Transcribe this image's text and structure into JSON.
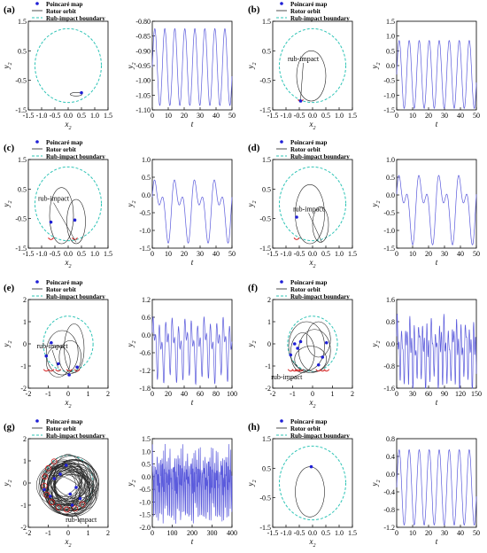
{
  "legend": {
    "poincare": "Poincaré map",
    "orbit": "Rotor orbit",
    "boundary": "Rub-impact boundary"
  },
  "colors": {
    "boundary": "#2ec4b6",
    "poincare": "#1f1fd6",
    "orbit": "#222222",
    "series": "#5b5bdc",
    "impact": "#d62020"
  },
  "annotation": "rub-impact",
  "chart_data": [
    {
      "panel": "(a)",
      "left": {
        "type": "scatter",
        "xlabel": "x2",
        "ylabel": "y2",
        "xlim": [
          -1.5,
          1.5
        ],
        "ylim": [
          -1.5,
          1.5
        ],
        "xticks": [
          "-1.5",
          "-1.0",
          "-0.5",
          "0.0",
          "0.5",
          "1.0",
          "1.5"
        ],
        "yticks": [
          "1.5",
          "0.5",
          "-0.5",
          "-1.5"
        ],
        "poincare": [
          [
            0.5,
            -0.92
          ]
        ],
        "impact": false,
        "rings": [
          [
            0.3,
            -0.97,
            0.22,
            0.06
          ]
        ],
        "legend": true
      },
      "right": {
        "type": "line",
        "xlabel": "t",
        "ylabel": "y2",
        "xlim": [
          0,
          50
        ],
        "ylim": [
          -1.1,
          -0.8
        ],
        "xticks": [
          "0",
          "10",
          "20",
          "30",
          "40",
          "50"
        ],
        "yticks": [
          "-0.80",
          "-0.85",
          "-0.90",
          "-0.95",
          "-1.00",
          "-1.05",
          "-1.10"
        ],
        "mid": -0.955,
        "amp": 0.13,
        "period": 6.28,
        "harm": 0
      }
    },
    {
      "panel": "(b)",
      "left": {
        "type": "scatter",
        "xlabel": "x2",
        "ylabel": "y2",
        "xlim": [
          -1.5,
          1.5
        ],
        "ylim": [
          -1.5,
          1.5
        ],
        "xticks": [
          "-1.5",
          "-1.0",
          "-0.5",
          "0.0",
          "0.5",
          "1.0",
          "1.5"
        ],
        "yticks": [
          "1.5",
          "0.5",
          "-0.5",
          "-1.5"
        ],
        "poincare": [
          [
            -0.45,
            -1.2
          ]
        ],
        "impact": true,
        "rings": [
          [
            -0.05,
            -0.35,
            0.55,
            0.85
          ]
        ],
        "legend": true,
        "ann": [
          -0.35,
          0.15,
          -0.45,
          -1.15
        ]
      },
      "right": {
        "type": "line",
        "xlabel": "t",
        "ylabel": "y2",
        "xlim": [
          0,
          50
        ],
        "ylim": [
          -1.5,
          1.5
        ],
        "xticks": [
          "0",
          "10",
          "20",
          "30",
          "40",
          "50"
        ],
        "yticks": [
          "1.5",
          "1.0",
          "0.5",
          "0.0",
          "-0.5",
          "-1.0",
          "-1.5"
        ],
        "mid": -0.3,
        "amp": 1.15,
        "period": 6.28,
        "harm": 0
      }
    },
    {
      "panel": "(c)",
      "left": {
        "type": "scatter",
        "xlabel": "x2",
        "ylabel": "y2",
        "xlim": [
          -1.5,
          1.5
        ],
        "ylim": [
          -1.5,
          1.5
        ],
        "xticks": [
          "-1.5",
          "-1.0",
          "-0.5",
          "0.0",
          "0.5",
          "1.0",
          "1.5"
        ],
        "yticks": [
          "1.5",
          "0.5",
          "-0.5",
          "-1.5"
        ],
        "poincare": [
          [
            -0.65,
            -0.62
          ],
          [
            0.25,
            -0.55
          ]
        ],
        "impact": true,
        "rings": [
          [
            -0.25,
            -0.4,
            0.45,
            0.95
          ],
          [
            0.3,
            -0.6,
            0.35,
            0.75
          ]
        ],
        "legend": true,
        "ann": [
          -0.55,
          0.1,
          0.3,
          -1.3
        ]
      },
      "right": {
        "type": "line",
        "xlabel": "t",
        "ylabel": "y2",
        "xlim": [
          0,
          50
        ],
        "ylim": [
          -1.5,
          1.0
        ],
        "xticks": [
          "0",
          "10",
          "20",
          "30",
          "40",
          "50"
        ],
        "yticks": [
          "1.0",
          "0.5",
          "0.0",
          "-0.5",
          "-1.0",
          "-1.5"
        ],
        "mid": -0.35,
        "amp": 1.0,
        "period": 12.5,
        "harm": 1
      }
    },
    {
      "panel": "(d)",
      "left": {
        "type": "scatter",
        "xlabel": "x2",
        "ylabel": "y2",
        "xlim": [
          -1.5,
          1.5
        ],
        "ylim": [
          -1.5,
          1.5
        ],
        "xticks": [
          "-1.5",
          "-1.0",
          "-0.5",
          "0.0",
          "0.5",
          "1.0",
          "1.5"
        ],
        "yticks": [
          "1.5",
          "0.5",
          "-0.5",
          "-1.5"
        ],
        "poincare": [
          [
            -0.6,
            -0.45
          ]
        ],
        "impact": true,
        "rings": [
          [
            -0.1,
            -0.35,
            0.55,
            1.0
          ],
          [
            0.3,
            -0.7,
            0.3,
            0.6
          ]
        ],
        "legend": true,
        "ann": [
          -0.15,
          -0.25,
          0.35,
          -1.3
        ]
      },
      "right": {
        "type": "line",
        "xlabel": "t",
        "ylabel": "y2",
        "xlim": [
          0,
          50
        ],
        "ylim": [
          -1.5,
          1.0
        ],
        "xticks": [
          "0",
          "10",
          "20",
          "30",
          "40",
          "50"
        ],
        "yticks": [
          "1.0",
          "0.5",
          "0.0",
          "-0.5",
          "-1.0",
          "-1.5"
        ],
        "mid": -0.3,
        "amp": 1.1,
        "period": 12.5,
        "harm": 1
      }
    },
    {
      "panel": "(e)",
      "left": {
        "type": "scatter",
        "xlabel": "x2",
        "ylabel": "y2",
        "xlim": [
          -2,
          2
        ],
        "ylim": [
          -2,
          2
        ],
        "xticks": [
          "-2",
          "-1",
          "0",
          "1",
          "2"
        ],
        "yticks": [
          "2",
          "1",
          "0",
          "-1",
          "-2"
        ],
        "poincare": [
          [
            -1.1,
            -0.55
          ],
          [
            -0.5,
            -0.9
          ],
          [
            0.05,
            -1.4
          ],
          [
            0.45,
            -1.05
          ],
          [
            -0.85,
            0.05
          ]
        ],
        "impact": true,
        "rings": [
          [
            -0.3,
            -0.4,
            0.8,
            1.0
          ],
          [
            0.1,
            -0.6,
            0.55,
            0.75
          ],
          [
            -0.5,
            -0.8,
            0.6,
            0.7
          ],
          [
            0.3,
            -0.2,
            0.5,
            1.1
          ]
        ],
        "legend": true,
        "ann": [
          -0.8,
          -0.2,
          -0.5,
          -1.1
        ]
      },
      "right": {
        "type": "line",
        "xlabel": "t",
        "ylabel": "y2",
        "xlim": [
          0,
          100
        ],
        "ylim": [
          -1.8,
          1.2
        ],
        "xticks": [
          "0",
          "20",
          "40",
          "60",
          "80",
          "100"
        ],
        "yticks": [
          "1.2",
          "0.6",
          "0.0",
          "-0.6",
          "-1.2",
          "-1.8"
        ],
        "mid": -0.4,
        "amp": 1.1,
        "period": 8,
        "harm": 2
      }
    },
    {
      "panel": "(f)",
      "left": {
        "type": "scatter",
        "xlabel": "x2",
        "ylabel": "y2",
        "xlim": [
          -2,
          2
        ],
        "ylim": [
          -2,
          2
        ],
        "xticks": [
          "-2",
          "-1",
          "0",
          "1",
          "2"
        ],
        "yticks": [
          "2",
          "1",
          "0",
          "-1",
          "-2"
        ],
        "poincare": [
          [
            -0.9,
            0.0
          ],
          [
            -0.75,
            -0.2
          ],
          [
            -0.6,
            0.1
          ],
          [
            -1.1,
            -0.5
          ],
          [
            0.5,
            -0.6
          ],
          [
            0.7,
            0.05
          ],
          [
            0.3,
            -0.95
          ]
        ],
        "impact": true,
        "rings": [
          [
            -0.3,
            -0.1,
            0.9,
            1.1
          ],
          [
            0.1,
            -0.3,
            0.8,
            0.95
          ],
          [
            -0.5,
            -0.4,
            0.6,
            0.9
          ],
          [
            0.3,
            0.2,
            0.6,
            0.8
          ],
          [
            -0.1,
            -0.7,
            0.8,
            0.6
          ]
        ],
        "legend": true,
        "ann": [
          -1.3,
          -1.6,
          -0.3,
          -1.2
        ]
      },
      "right": {
        "type": "line",
        "xlabel": "t",
        "ylabel": "y2",
        "xlim": [
          0,
          150
        ],
        "ylim": [
          -1.6,
          1.6
        ],
        "xticks": [
          "0",
          "30",
          "60",
          "90",
          "120",
          "150"
        ],
        "yticks": [
          "1.6",
          "0.8",
          "0.0",
          "-0.8",
          "-1.6"
        ],
        "mid": -0.25,
        "amp": 1.2,
        "period": 8,
        "harm": 3
      }
    },
    {
      "panel": "(g)",
      "left": {
        "type": "scatter",
        "xlabel": "x2",
        "ylabel": "y2",
        "xlim": [
          -2,
          2
        ],
        "ylim": [
          -2,
          2
        ],
        "xticks": [
          "-2",
          "-1",
          "0",
          "1",
          "2"
        ],
        "yticks": [
          "2",
          "1",
          "0",
          "-1",
          "-2"
        ],
        "poincare": [
          [
            -1.2,
            -0.3
          ],
          [
            -0.9,
            -0.6
          ],
          [
            -0.4,
            0.4
          ],
          [
            0.1,
            -0.5
          ],
          [
            0.4,
            -0.2
          ],
          [
            -0.1,
            0.8
          ],
          [
            0.6,
            -0.7
          ],
          [
            -0.7,
            0.2
          ],
          [
            0.2,
            -1.0
          ]
        ],
        "impact": true,
        "rings": "dense",
        "legend": true,
        "ann": [
          0.65,
          -1.75,
          0.1,
          -1.0
        ]
      },
      "right": {
        "type": "line",
        "xlabel": "t",
        "ylabel": "y2",
        "xlim": [
          0,
          400
        ],
        "ylim": [
          -2.0,
          1.5
        ],
        "xticks": [
          "0",
          "100",
          "200",
          "300",
          "400"
        ],
        "yticks": [
          "1.5",
          "1.0",
          "0.5",
          "0.0",
          "-0.5",
          "-1.0",
          "-1.5",
          "-2.0"
        ],
        "mid": -0.25,
        "amp": 1.3,
        "period": 8,
        "harm": 4
      }
    },
    {
      "panel": "(h)",
      "left": {
        "type": "scatter",
        "xlabel": "x2",
        "ylabel": "y2",
        "xlim": [
          -1.5,
          1.5
        ],
        "ylim": [
          -1.5,
          1.5
        ],
        "xticks": [
          "-1.5",
          "-1.0",
          "-0.5",
          "0.0",
          "0.5",
          "1.0",
          "1.5"
        ],
        "yticks": [
          "1.5",
          "0.5",
          "-0.5",
          "-1.5"
        ],
        "poincare": [
          [
            -0.05,
            0.55
          ]
        ],
        "impact": false,
        "rings": [
          [
            -0.1,
            -0.3,
            0.55,
            0.85
          ]
        ],
        "legend": true
      },
      "right": {
        "type": "line",
        "xlabel": "t",
        "ylabel": "y2",
        "xlim": [
          0,
          50
        ],
        "ylim": [
          -1.2,
          0.8
        ],
        "xticks": [
          "0",
          "10",
          "20",
          "30",
          "40",
          "50"
        ],
        "yticks": [
          "0.8",
          "0.4",
          "0.0",
          "-0.4",
          "-0.8",
          "-1.2"
        ],
        "mid": -0.3,
        "amp": 0.85,
        "period": 6.28,
        "harm": 0
      }
    }
  ]
}
